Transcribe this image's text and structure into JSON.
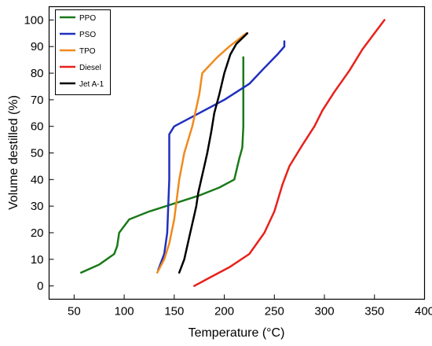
{
  "chart_data": {
    "type": "line",
    "title": "",
    "xlabel": "Temperature (°C)",
    "ylabel": "Volume destilled (%)",
    "xlim": [
      25,
      400
    ],
    "ylim": [
      -5,
      105
    ],
    "x_ticks": [
      50,
      100,
      150,
      200,
      250,
      300,
      350,
      400
    ],
    "y_ticks": [
      0,
      10,
      20,
      30,
      40,
      50,
      60,
      70,
      80,
      90,
      100
    ],
    "grid": false,
    "legend_position": "top-left",
    "series": [
      {
        "name": "PPO",
        "color": "#1a7a1a",
        "points": [
          [
            57,
            5
          ],
          [
            75,
            8
          ],
          [
            90,
            12
          ],
          [
            93,
            15
          ],
          [
            95,
            20
          ],
          [
            105,
            25
          ],
          [
            125,
            28
          ],
          [
            150,
            31
          ],
          [
            175,
            34
          ],
          [
            195,
            37
          ],
          [
            210,
            40
          ],
          [
            215,
            48
          ],
          [
            218,
            52
          ],
          [
            219,
            60
          ],
          [
            219,
            70
          ],
          [
            219,
            80
          ],
          [
            219,
            86
          ]
        ]
      },
      {
        "name": "PSO",
        "color": "#1f2fbf",
        "points": [
          [
            134,
            6
          ],
          [
            140,
            12
          ],
          [
            143,
            20
          ],
          [
            144,
            30
          ],
          [
            145,
            40
          ],
          [
            145,
            50
          ],
          [
            145,
            57
          ],
          [
            150,
            60
          ],
          [
            175,
            65
          ],
          [
            200,
            70
          ],
          [
            225,
            76
          ],
          [
            240,
            82
          ],
          [
            253,
            87
          ],
          [
            260,
            90
          ],
          [
            260,
            92
          ]
        ]
      },
      {
        "name": "TPO",
        "color": "#f08a1c",
        "points": [
          [
            133,
            5
          ],
          [
            140,
            10
          ],
          [
            145,
            16
          ],
          [
            150,
            25
          ],
          [
            155,
            40
          ],
          [
            160,
            50
          ],
          [
            168,
            60
          ],
          [
            175,
            72
          ],
          [
            178,
            80
          ],
          [
            193,
            86
          ],
          [
            205,
            90
          ],
          [
            222,
            95
          ]
        ]
      },
      {
        "name": "Diesel",
        "color": "#e8211b",
        "points": [
          [
            170,
            0
          ],
          [
            185,
            3
          ],
          [
            205,
            7
          ],
          [
            225,
            12
          ],
          [
            240,
            20
          ],
          [
            250,
            28
          ],
          [
            258,
            38
          ],
          [
            265,
            45
          ],
          [
            278,
            53
          ],
          [
            290,
            60
          ],
          [
            298,
            66
          ],
          [
            310,
            73
          ],
          [
            325,
            81
          ],
          [
            338,
            89
          ],
          [
            350,
            95
          ],
          [
            360,
            100
          ]
        ]
      },
      {
        "name": "Jet A-1",
        "color": "#000000",
        "points": [
          [
            155,
            5
          ],
          [
            160,
            10
          ],
          [
            163,
            15
          ],
          [
            166,
            20
          ],
          [
            169,
            25
          ],
          [
            172,
            30
          ],
          [
            174,
            35
          ],
          [
            177,
            40
          ],
          [
            180,
            45
          ],
          [
            183,
            50
          ],
          [
            187,
            58
          ],
          [
            190,
            65
          ],
          [
            195,
            72
          ],
          [
            200,
            80
          ],
          [
            206,
            87
          ],
          [
            212,
            91
          ],
          [
            223,
            95
          ]
        ]
      }
    ]
  }
}
